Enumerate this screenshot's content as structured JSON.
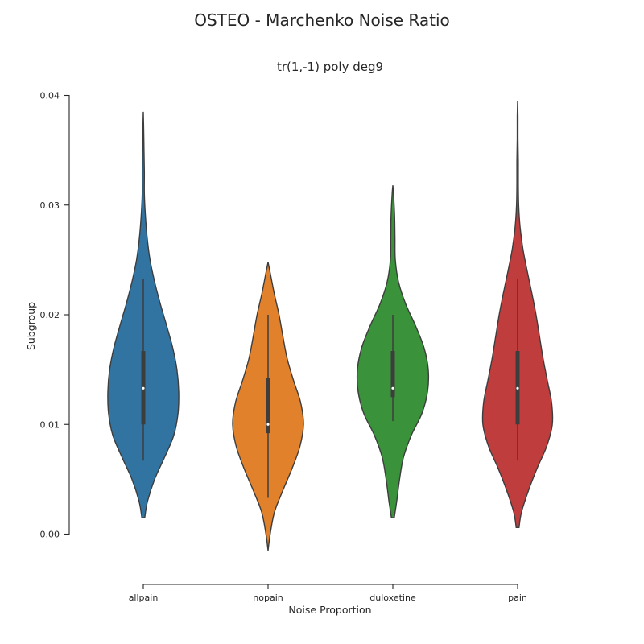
{
  "title": "OSTEO - Marchenko Noise Ratio",
  "subtitle": "tr(1,-1) poly deg9",
  "chart_data": {
    "type": "violin",
    "xlabel": "Noise Proportion",
    "ylabel": "Subgroup",
    "ylim": [
      0.0,
      0.04
    ],
    "yticks": [
      0.0,
      0.01,
      0.02,
      0.03,
      0.04
    ],
    "ytick_labels": [
      "0.00",
      "0.01",
      "0.02",
      "0.03",
      "0.04"
    ],
    "categories": [
      "allpain",
      "nopain",
      "duloxetine",
      "pain"
    ],
    "grid": false,
    "series": [
      {
        "label": "allpain",
        "color": "#3274a1",
        "min": 0.0067,
        "q1": 0.01,
        "median": 0.0133,
        "q3": 0.0167,
        "max": 0.0233,
        "density": [
          [
            0.0015,
            0.04
          ],
          [
            0.003,
            0.12
          ],
          [
            0.005,
            0.32
          ],
          [
            0.007,
            0.6
          ],
          [
            0.009,
            0.86
          ],
          [
            0.011,
            0.98
          ],
          [
            0.013,
            1.0
          ],
          [
            0.015,
            0.95
          ],
          [
            0.017,
            0.83
          ],
          [
            0.019,
            0.66
          ],
          [
            0.021,
            0.48
          ],
          [
            0.023,
            0.32
          ],
          [
            0.025,
            0.19
          ],
          [
            0.027,
            0.11
          ],
          [
            0.029,
            0.06
          ],
          [
            0.031,
            0.03
          ],
          [
            0.033,
            0.03
          ],
          [
            0.035,
            0.02
          ],
          [
            0.037,
            0.01
          ],
          [
            0.0385,
            0.0
          ]
        ]
      },
      {
        "label": "nopain",
        "color": "#e1812c",
        "min": 0.0033,
        "q1": 0.0092,
        "median": 0.01,
        "q3": 0.0142,
        "max": 0.02,
        "density": [
          [
            -0.0015,
            0.0
          ],
          [
            0.0,
            0.06
          ],
          [
            0.002,
            0.18
          ],
          [
            0.004,
            0.42
          ],
          [
            0.006,
            0.68
          ],
          [
            0.008,
            0.9
          ],
          [
            0.01,
            1.0
          ],
          [
            0.012,
            0.92
          ],
          [
            0.014,
            0.72
          ],
          [
            0.016,
            0.54
          ],
          [
            0.018,
            0.42
          ],
          [
            0.02,
            0.31
          ],
          [
            0.022,
            0.17
          ],
          [
            0.024,
            0.05
          ],
          [
            0.0248,
            0.0
          ]
        ]
      },
      {
        "label": "duloxetine",
        "color": "#3a923a",
        "min": 0.0103,
        "q1": 0.0125,
        "median": 0.0133,
        "q3": 0.0167,
        "max": 0.02,
        "density": [
          [
            0.0015,
            0.04
          ],
          [
            0.003,
            0.11
          ],
          [
            0.005,
            0.19
          ],
          [
            0.007,
            0.3
          ],
          [
            0.009,
            0.52
          ],
          [
            0.011,
            0.82
          ],
          [
            0.013,
            0.98
          ],
          [
            0.015,
            1.0
          ],
          [
            0.017,
            0.88
          ],
          [
            0.019,
            0.64
          ],
          [
            0.021,
            0.36
          ],
          [
            0.023,
            0.16
          ],
          [
            0.025,
            0.07
          ],
          [
            0.027,
            0.06
          ],
          [
            0.029,
            0.05
          ],
          [
            0.031,
            0.02
          ],
          [
            0.0318,
            0.0
          ]
        ]
      },
      {
        "label": "pain",
        "color": "#c03d3e",
        "min": 0.0067,
        "q1": 0.01,
        "median": 0.0133,
        "q3": 0.0167,
        "max": 0.0233,
        "density": [
          [
            0.0006,
            0.04
          ],
          [
            0.002,
            0.11
          ],
          [
            0.004,
            0.31
          ],
          [
            0.006,
            0.55
          ],
          [
            0.008,
            0.82
          ],
          [
            0.01,
            0.98
          ],
          [
            0.012,
            0.96
          ],
          [
            0.014,
            0.84
          ],
          [
            0.016,
            0.72
          ],
          [
            0.018,
            0.62
          ],
          [
            0.02,
            0.52
          ],
          [
            0.022,
            0.4
          ],
          [
            0.024,
            0.27
          ],
          [
            0.026,
            0.15
          ],
          [
            0.028,
            0.07
          ],
          [
            0.03,
            0.03
          ],
          [
            0.032,
            0.02
          ],
          [
            0.034,
            0.02
          ],
          [
            0.036,
            0.01
          ],
          [
            0.038,
            0.01
          ],
          [
            0.0395,
            0.0
          ]
        ]
      }
    ]
  }
}
